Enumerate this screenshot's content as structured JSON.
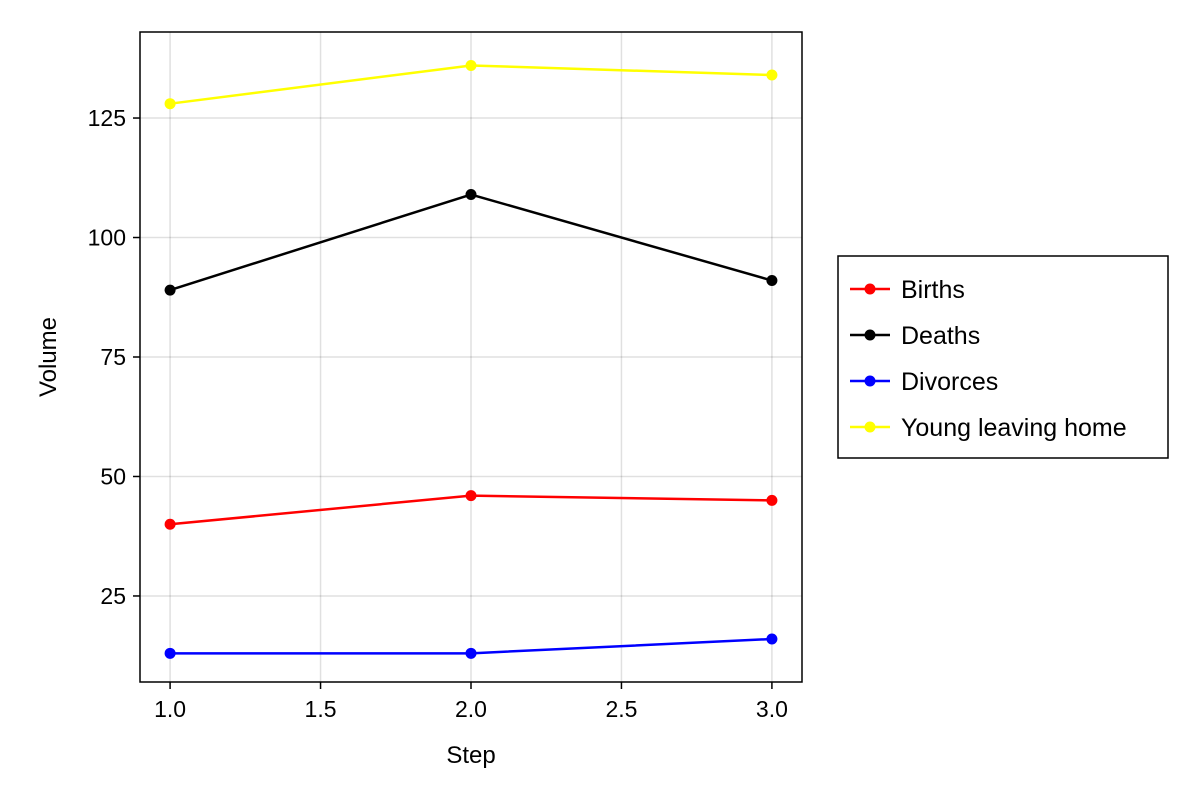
{
  "chart_data": {
    "type": "line",
    "xlabel": "Step",
    "ylabel": "Volume",
    "xlim": [
      0.9,
      3.1
    ],
    "ylim": [
      7,
      143
    ],
    "x_ticks": [
      1.0,
      1.5,
      2.0,
      2.5,
      3.0
    ],
    "x_tick_labels": [
      "1.0",
      "1.5",
      "2.0",
      "2.5",
      "3.0"
    ],
    "y_ticks": [
      25,
      50,
      75,
      100,
      125
    ],
    "y_tick_labels": [
      "25",
      "50",
      "75",
      "100",
      "125"
    ],
    "grid": true,
    "legend_position": "right",
    "x": [
      1,
      2,
      3
    ],
    "series": [
      {
        "name": "Births",
        "color": "#ff0000",
        "values": [
          40,
          46,
          45
        ]
      },
      {
        "name": "Deaths",
        "color": "#000000",
        "values": [
          89,
          109,
          91
        ]
      },
      {
        "name": "Divorces",
        "color": "#0000ff",
        "values": [
          13,
          13,
          16
        ]
      },
      {
        "name": "Young leaving home",
        "color": "#ffff00",
        "values": [
          128,
          136,
          134
        ]
      }
    ]
  }
}
